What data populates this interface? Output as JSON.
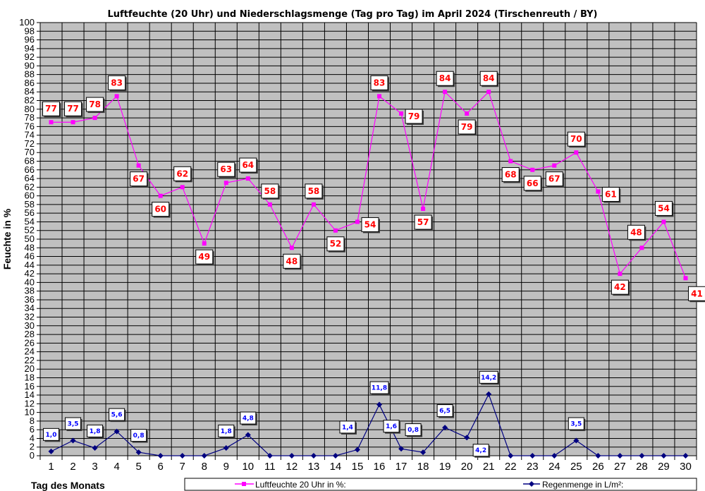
{
  "chart_data": {
    "type": "line",
    "title": "Luftfeuchte (20 Uhr) und Niederschlagsmenge (Tag pro Tag) im April 2024 (Tirschenreuth / BY)",
    "xlabel": "Tag des Monats",
    "ylabel": "Feuchte in %",
    "ylim": [
      0,
      100
    ],
    "ytick_step": 2,
    "grid": true,
    "legend_placement": "bottom",
    "x": [
      1,
      2,
      3,
      4,
      5,
      6,
      7,
      8,
      9,
      10,
      11,
      12,
      13,
      14,
      15,
      16,
      17,
      18,
      19,
      20,
      21,
      22,
      23,
      24,
      25,
      26,
      27,
      28,
      29,
      30
    ],
    "series": [
      {
        "name": "Luftfeuchte 20 Uhr in %:",
        "color": "#ff00ff",
        "marker": "square",
        "values": [
          77,
          77,
          78,
          83,
          67,
          60,
          62,
          49,
          63,
          64,
          58,
          48,
          58,
          52,
          54,
          83,
          79,
          57,
          84,
          79,
          84,
          68,
          66,
          67,
          70,
          61,
          42,
          48,
          54,
          41
        ],
        "labels": [
          "77",
          "77",
          "78",
          "83",
          "67",
          "60",
          "62",
          "49",
          "63",
          "64",
          "58",
          "48",
          "58",
          "52",
          "54",
          "83",
          "79",
          "57",
          "84",
          "79",
          "84",
          "68",
          "66",
          "67",
          "70",
          "61",
          "42",
          "48",
          "54",
          "41"
        ]
      },
      {
        "name": "Regenmenge in L/m²:",
        "color": "#000080",
        "marker": "diamond",
        "values": [
          1.0,
          3.5,
          1.8,
          5.6,
          0.8,
          0,
          0,
          0,
          1.8,
          4.8,
          0,
          0,
          0,
          0,
          1.4,
          11.8,
          1.6,
          0.8,
          6.5,
          4.2,
          14.2,
          0,
          0,
          0,
          3.5,
          0,
          0,
          0,
          0,
          0
        ],
        "labels": [
          "1,0",
          "3,5",
          "1,8",
          "5,6",
          "0,8",
          "",
          "",
          "",
          "1,8",
          "4,8",
          "",
          "",
          "",
          "",
          "1,4",
          "11,8",
          "1,6",
          "0,8",
          "6,5",
          "4,2",
          "14,2",
          "",
          "",
          "",
          "3,5",
          "",
          "",
          "",
          "",
          ""
        ]
      }
    ],
    "plot_background": "#c0c0c0"
  }
}
